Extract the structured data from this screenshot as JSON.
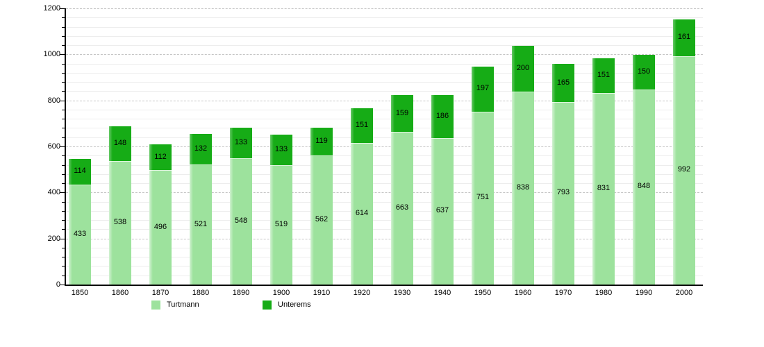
{
  "chart_data": {
    "type": "bar",
    "stacked": true,
    "title": "",
    "xlabel": "",
    "ylabel": "",
    "categories": [
      "1850",
      "1860",
      "1870",
      "1880",
      "1890",
      "1900",
      "1910",
      "1920",
      "1930",
      "1940",
      "1950",
      "1960",
      "1970",
      "1980",
      "1990",
      "2000"
    ],
    "series": [
      {
        "name": "Turtmann",
        "color": "#9de29d",
        "values": [
          433,
          538,
          496,
          521,
          548,
          519,
          562,
          614,
          663,
          637,
          751,
          838,
          793,
          831,
          848,
          992
        ]
      },
      {
        "name": "Unterems",
        "color": "#16ac16",
        "values": [
          114,
          148,
          112,
          132,
          133,
          133,
          119,
          151,
          159,
          186,
          197,
          200,
          165,
          151,
          150,
          161
        ]
      }
    ],
    "ylim": [
      0,
      1200
    ],
    "y_major_ticks": [
      0,
      200,
      400,
      600,
      800,
      1000,
      1200
    ],
    "y_minor_step": 40,
    "grid": true,
    "legend_position": "bottom",
    "bar_value_labels": true
  },
  "colors": {
    "axis": "#000000",
    "gridline_minor": "#ededed",
    "gridline_major": "#c5c5c5",
    "background": "#ffffff",
    "label_text": "#000000"
  }
}
